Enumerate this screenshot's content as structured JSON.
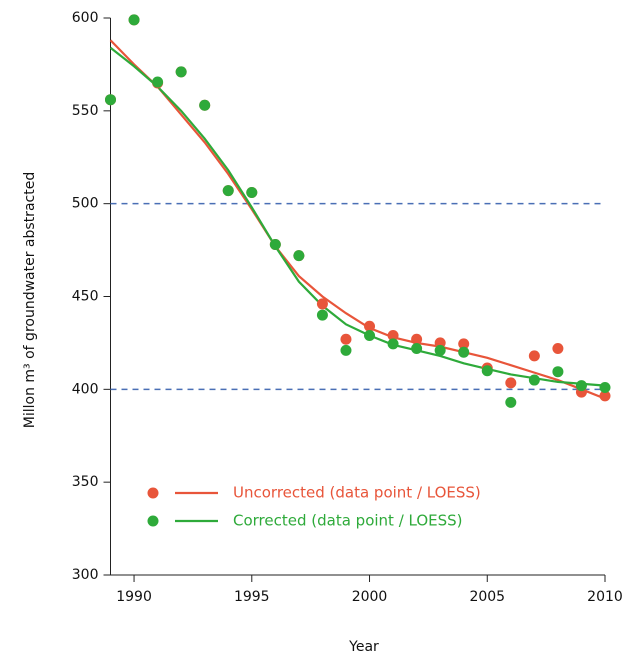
{
  "chart_data": {
    "type": "scatter_loess",
    "x_label": "Year",
    "y_label": "Millon m³ of groundwater abstracted",
    "x": [
      1989,
      1990,
      1991,
      1992,
      1993,
      1994,
      1995,
      1996,
      1997,
      1998,
      1999,
      2000,
      2001,
      2002,
      2003,
      2004,
      2005,
      2006,
      2007,
      2008,
      2009,
      2010
    ],
    "series": [
      {
        "name": "Uncorrected (data point / LOESS)",
        "color": "#e8553a",
        "points": [
          556,
          599,
          565,
          571,
          553,
          507,
          506,
          478,
          472,
          446,
          427,
          434,
          429,
          427,
          425,
          424.5,
          411.5,
          403.5,
          418,
          422,
          398.5,
          396.5
        ],
        "loess": [
          588,
          575,
          563,
          548,
          533,
          516,
          497,
          477,
          461,
          450,
          441,
          433,
          428,
          425,
          423,
          420,
          417,
          413,
          409,
          405,
          400,
          395
        ]
      },
      {
        "name": "Corrected (data point / LOESS)",
        "color": "#2eaa3a",
        "points": [
          556,
          599,
          565.5,
          571,
          553,
          507,
          506,
          478,
          472,
          440,
          421,
          429,
          424.5,
          422,
          421,
          420,
          410,
          393,
          405,
          409.5,
          402,
          401
        ],
        "loess": [
          584,
          574,
          563,
          550,
          535,
          518,
          498,
          477,
          458,
          445,
          435,
          429,
          424,
          421,
          418,
          414,
          411,
          408,
          406,
          404,
          403,
          402
        ]
      }
    ],
    "reference_lines": {
      "values": [
        500,
        400
      ],
      "color": "#4a6fb5"
    },
    "xlim": [
      1989,
      2010
    ],
    "ylim": [
      300,
      600
    ],
    "xticks": [
      1990,
      1995,
      2000,
      2005,
      2010
    ],
    "yticks": [
      300,
      350,
      400,
      450,
      500,
      550,
      600
    ],
    "legend": "bottom-left"
  }
}
